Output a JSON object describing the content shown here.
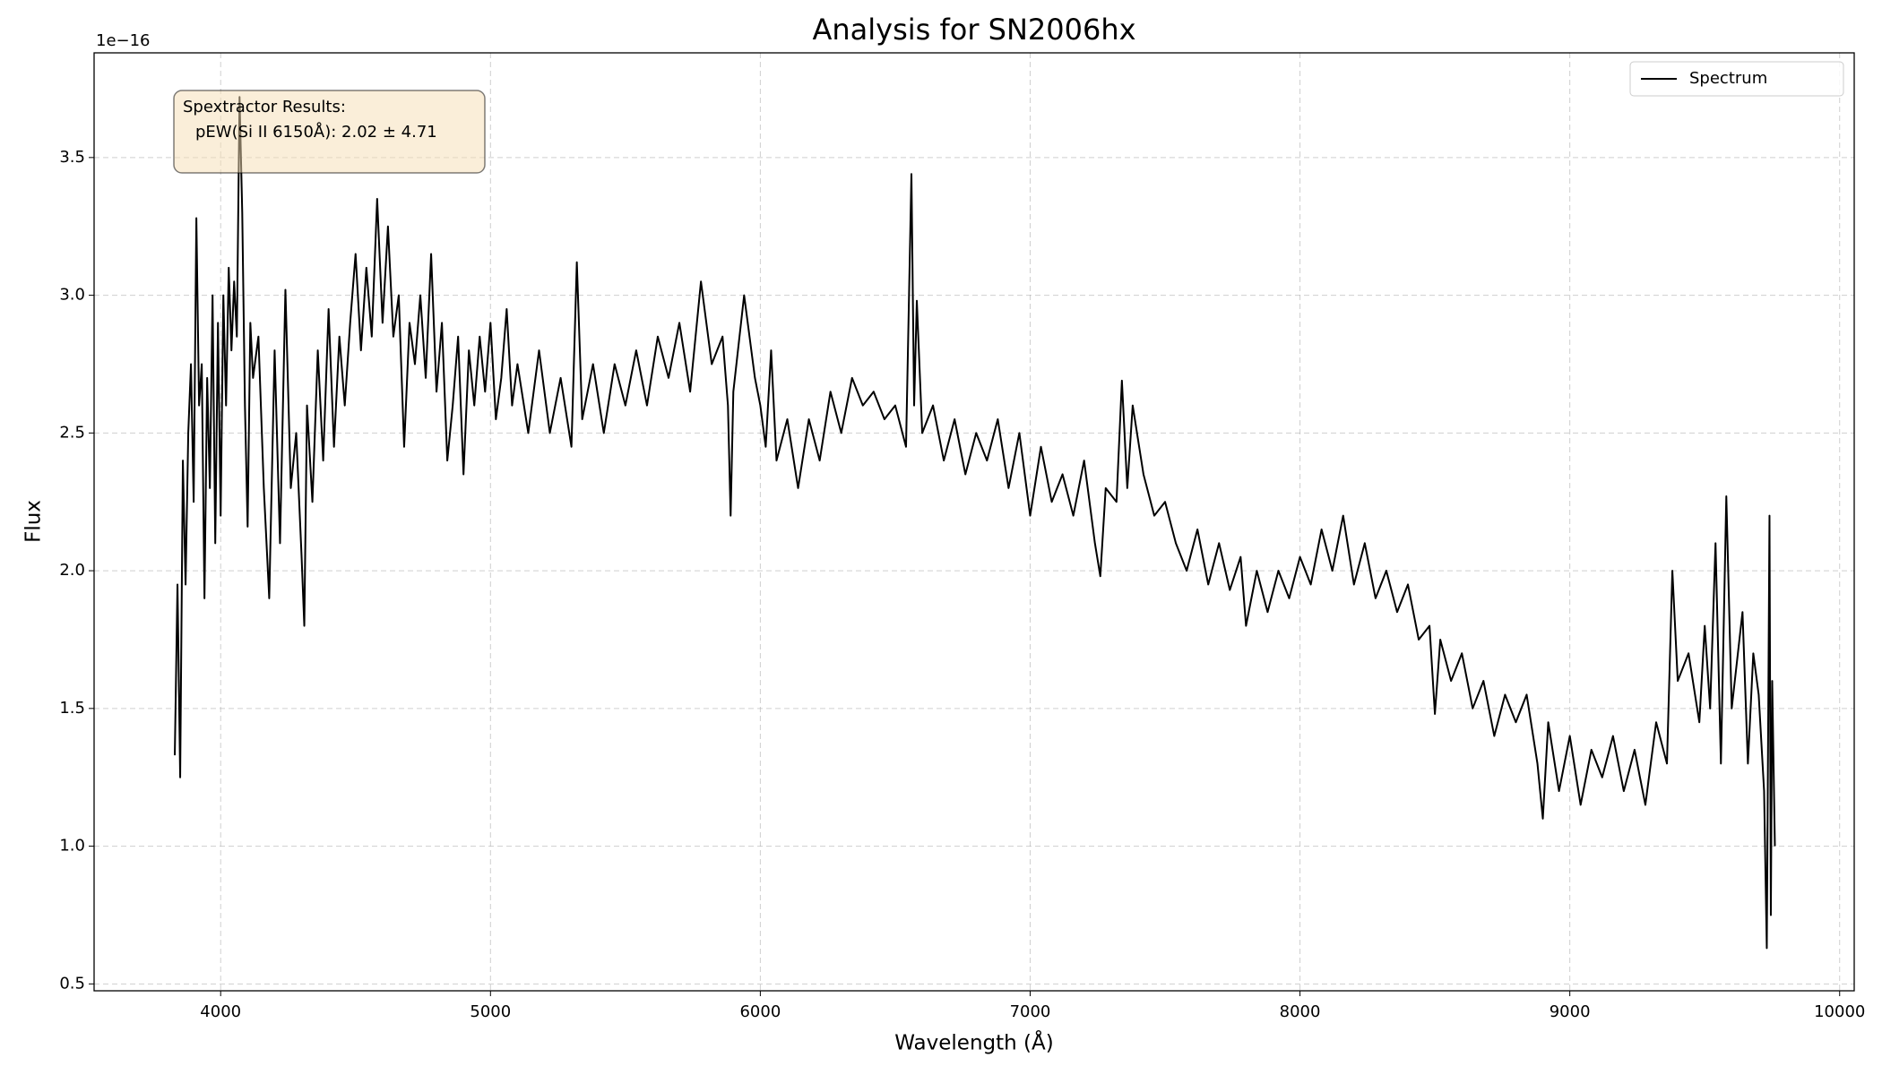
{
  "chart_data": {
    "type": "line",
    "title": "Analysis for SN2006hx",
    "x_label": "Wavelength (Å)",
    "y_label": "Flux",
    "y_offset": "1e−16",
    "annotation": [
      "Spextractor Results:",
      "pEW(Si II 6150Å): 2.02 ± 4.71"
    ],
    "legend": "upper right",
    "grid": true,
    "xlim": [
      3531,
      10054
    ],
    "xticks": [
      4000,
      5000,
      6000,
      7000,
      8000,
      9000,
      10000
    ],
    "ylim": [
      0.475,
      3.88
    ],
    "yticks": [
      0.5,
      {
        "value": 1,
        "label": "1.0"
      },
      1.5,
      {
        "value": 2,
        "label": "2.0"
      },
      2.5,
      {
        "value": 3,
        "label": "3.0"
      },
      3.5
    ],
    "x": [
      3830,
      3840,
      3850,
      3860,
      3870,
      3880,
      3890,
      3900,
      3910,
      3920,
      3930,
      3940,
      3950,
      3960,
      3970,
      3980,
      3990,
      4000,
      4010,
      4020,
      4030,
      4040,
      4050,
      4060,
      4070,
      4080,
      4090,
      4100,
      4110,
      4120,
      4140,
      4160,
      4180,
      4200,
      4220,
      4240,
      4260,
      4280,
      4300,
      4310,
      4320,
      4340,
      4360,
      4380,
      4400,
      4420,
      4440,
      4460,
      4480,
      4500,
      4520,
      4540,
      4560,
      4580,
      4600,
      4620,
      4640,
      4660,
      4680,
      4700,
      4720,
      4740,
      4760,
      4780,
      4800,
      4820,
      4840,
      4860,
      4880,
      4900,
      4920,
      4940,
      4960,
      4980,
      5000,
      5020,
      5040,
      5060,
      5080,
      5100,
      5140,
      5180,
      5220,
      5260,
      5300,
      5320,
      5340,
      5380,
      5420,
      5460,
      5500,
      5540,
      5580,
      5620,
      5660,
      5700,
      5740,
      5780,
      5820,
      5860,
      5880,
      5890,
      5900,
      5940,
      5980,
      6000,
      6020,
      6040,
      6060,
      6100,
      6140,
      6180,
      6220,
      6260,
      6300,
      6340,
      6380,
      6420,
      6460,
      6500,
      6540,
      6560,
      6570,
      6580,
      6600,
      6640,
      6680,
      6720,
      6760,
      6800,
      6840,
      6880,
      6920,
      6960,
      7000,
      7040,
      7080,
      7120,
      7160,
      7200,
      7240,
      7260,
      7280,
      7320,
      7340,
      7360,
      7380,
      7420,
      7460,
      7500,
      7540,
      7580,
      7620,
      7660,
      7700,
      7740,
      7780,
      7800,
      7840,
      7880,
      7920,
      7960,
      8000,
      8040,
      8080,
      8120,
      8160,
      8200,
      8240,
      8280,
      8320,
      8360,
      8400,
      8440,
      8480,
      8500,
      8520,
      8560,
      8600,
      8640,
      8680,
      8720,
      8760,
      8800,
      8840,
      8880,
      8900,
      8920,
      8960,
      9000,
      9040,
      9080,
      9120,
      9160,
      9200,
      9240,
      9280,
      9320,
      9360,
      9380,
      9400,
      9440,
      9480,
      9500,
      9520,
      9540,
      9560,
      9580,
      9600,
      9640,
      9660,
      9680,
      9700,
      9720,
      9730,
      9740,
      9745,
      9750,
      9760
    ],
    "series": [
      {
        "name": "Spectrum",
        "color": "#000000",
        "values": [
          1.33,
          1.95,
          1.25,
          2.4,
          1.95,
          2.5,
          2.75,
          2.25,
          3.28,
          2.6,
          2.75,
          1.9,
          2.7,
          2.3,
          3.0,
          2.1,
          2.9,
          2.2,
          3.0,
          2.6,
          3.1,
          2.8,
          3.05,
          2.85,
          3.72,
          3.3,
          2.6,
          2.16,
          2.9,
          2.7,
          2.85,
          2.3,
          1.9,
          2.8,
          2.1,
          3.02,
          2.3,
          2.5,
          2.05,
          1.8,
          2.6,
          2.25,
          2.8,
          2.4,
          2.95,
          2.45,
          2.85,
          2.6,
          2.9,
          3.15,
          2.8,
          3.1,
          2.85,
          3.35,
          2.9,
          3.25,
          2.85,
          3.0,
          2.45,
          2.9,
          2.75,
          3.0,
          2.7,
          3.15,
          2.65,
          2.9,
          2.4,
          2.6,
          2.85,
          2.35,
          2.8,
          2.6,
          2.85,
          2.65,
          2.9,
          2.55,
          2.7,
          2.95,
          2.6,
          2.75,
          2.5,
          2.8,
          2.5,
          2.7,
          2.45,
          3.12,
          2.55,
          2.75,
          2.5,
          2.75,
          2.6,
          2.8,
          2.6,
          2.85,
          2.7,
          2.9,
          2.65,
          3.05,
          2.75,
          2.85,
          2.6,
          2.2,
          2.65,
          3.0,
          2.7,
          2.6,
          2.45,
          2.8,
          2.4,
          2.55,
          2.3,
          2.55,
          2.4,
          2.65,
          2.5,
          2.7,
          2.6,
          2.65,
          2.55,
          2.6,
          2.45,
          3.44,
          2.6,
          2.98,
          2.5,
          2.6,
          2.4,
          2.55,
          2.35,
          2.5,
          2.4,
          2.55,
          2.3,
          2.5,
          2.2,
          2.45,
          2.25,
          2.35,
          2.2,
          2.4,
          2.1,
          1.98,
          2.3,
          2.25,
          2.69,
          2.3,
          2.6,
          2.35,
          2.2,
          2.25,
          2.1,
          2.0,
          2.15,
          1.95,
          2.1,
          1.93,
          2.05,
          1.8,
          2.0,
          1.85,
          2.0,
          1.9,
          2.05,
          1.95,
          2.15,
          2.0,
          2.2,
          1.95,
          2.1,
          1.9,
          2.0,
          1.85,
          1.95,
          1.75,
          1.8,
          1.48,
          1.75,
          1.6,
          1.7,
          1.5,
          1.6,
          1.4,
          1.55,
          1.45,
          1.55,
          1.3,
          1.1,
          1.45,
          1.2,
          1.4,
          1.15,
          1.35,
          1.25,
          1.4,
          1.2,
          1.35,
          1.15,
          1.45,
          1.3,
          2.0,
          1.6,
          1.7,
          1.45,
          1.8,
          1.5,
          2.1,
          1.3,
          2.27,
          1.5,
          1.85,
          1.3,
          1.7,
          1.55,
          1.2,
          0.63,
          2.2,
          0.75,
          1.6,
          1.0
        ]
      }
    ]
  }
}
